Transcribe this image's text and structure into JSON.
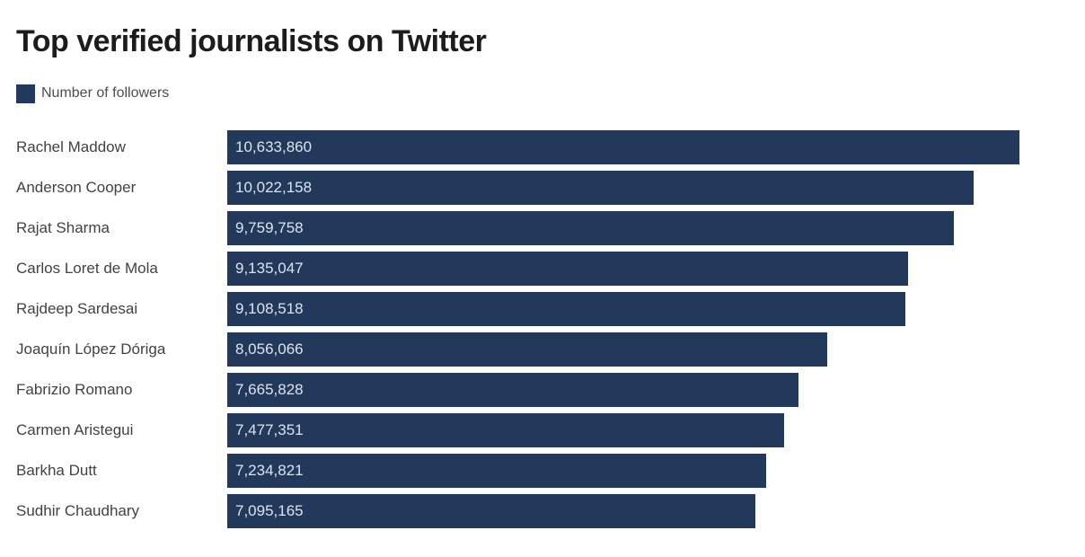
{
  "title": "Top verified journalists on Twitter",
  "legend": {
    "label": "Number of followers",
    "swatch_color": "#22395b"
  },
  "colors": {
    "bar": "#22395b",
    "value_text": "#dde3ec",
    "name_text": "#424242",
    "title_text": "#1c1c1c",
    "background": "#ffffff"
  },
  "chart_data": {
    "type": "bar",
    "orientation": "horizontal",
    "title": "Top verified journalists on Twitter",
    "legend_entries": [
      "Number of followers"
    ],
    "categories": [
      "Rachel Maddow",
      "Anderson Cooper",
      "Rajat Sharma",
      "Carlos Loret de Mola",
      "Rajdeep Sardesai",
      "Joaquín López Dóriga",
      "Fabrizio Romano",
      "Carmen Aristegui",
      "Barkha Dutt",
      "Sudhir Chaudhary"
    ],
    "values": [
      10633860,
      10022158,
      9759758,
      9135047,
      9108518,
      8056066,
      7665828,
      7477351,
      7234821,
      7095165
    ],
    "value_labels": [
      "10,633,860",
      "10,022,158",
      "9,759,758",
      "9,135,047",
      "9,108,518",
      "8,056,066",
      "7,665,828",
      "7,477,351",
      "7,234,821",
      "7,095,165"
    ],
    "xlabel": "",
    "ylabel": "",
    "xlim": [
      0,
      10633860
    ],
    "grid": false,
    "legend_position": "top-left",
    "data_labels": "inside-start"
  }
}
